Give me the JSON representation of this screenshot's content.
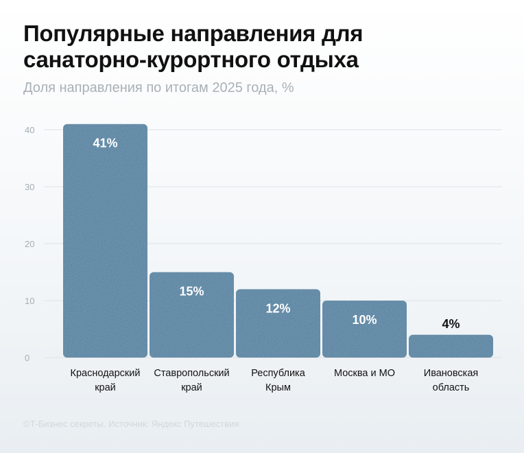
{
  "title_line1": "Популярные направления для",
  "title_line2": "санаторно-курортного отдыха",
  "subtitle": "Доля направления по итогам 2025 года, %",
  "source": "©Т-Бизнес секреты. Источник: Яндекс Путешествия",
  "colors": {
    "bar": "#3f7a9c",
    "grid": "#dde2e6",
    "value_inside": "#ffffff",
    "value_outside": "#111111"
  },
  "chart_data": {
    "type": "bar",
    "title": "Популярные направления для санаторно-курортного отдыха",
    "subtitle": "Доля направления по итогам 2025 года, %",
    "categories": [
      [
        "Краснодарский",
        "край"
      ],
      [
        "Ставропольский",
        "край"
      ],
      [
        "Республика",
        "Крым"
      ],
      [
        "Москва и МО"
      ],
      [
        "Ивановская",
        "область"
      ]
    ],
    "values": [
      41,
      15,
      12,
      10,
      4
    ],
    "value_labels": [
      "41%",
      "15%",
      "12%",
      "10%",
      "4%"
    ],
    "yticks": [
      "0",
      "10",
      "20",
      "30",
      "40"
    ],
    "ylim": [
      0,
      40
    ],
    "grid": true,
    "xlabel": "",
    "ylabel": ""
  }
}
